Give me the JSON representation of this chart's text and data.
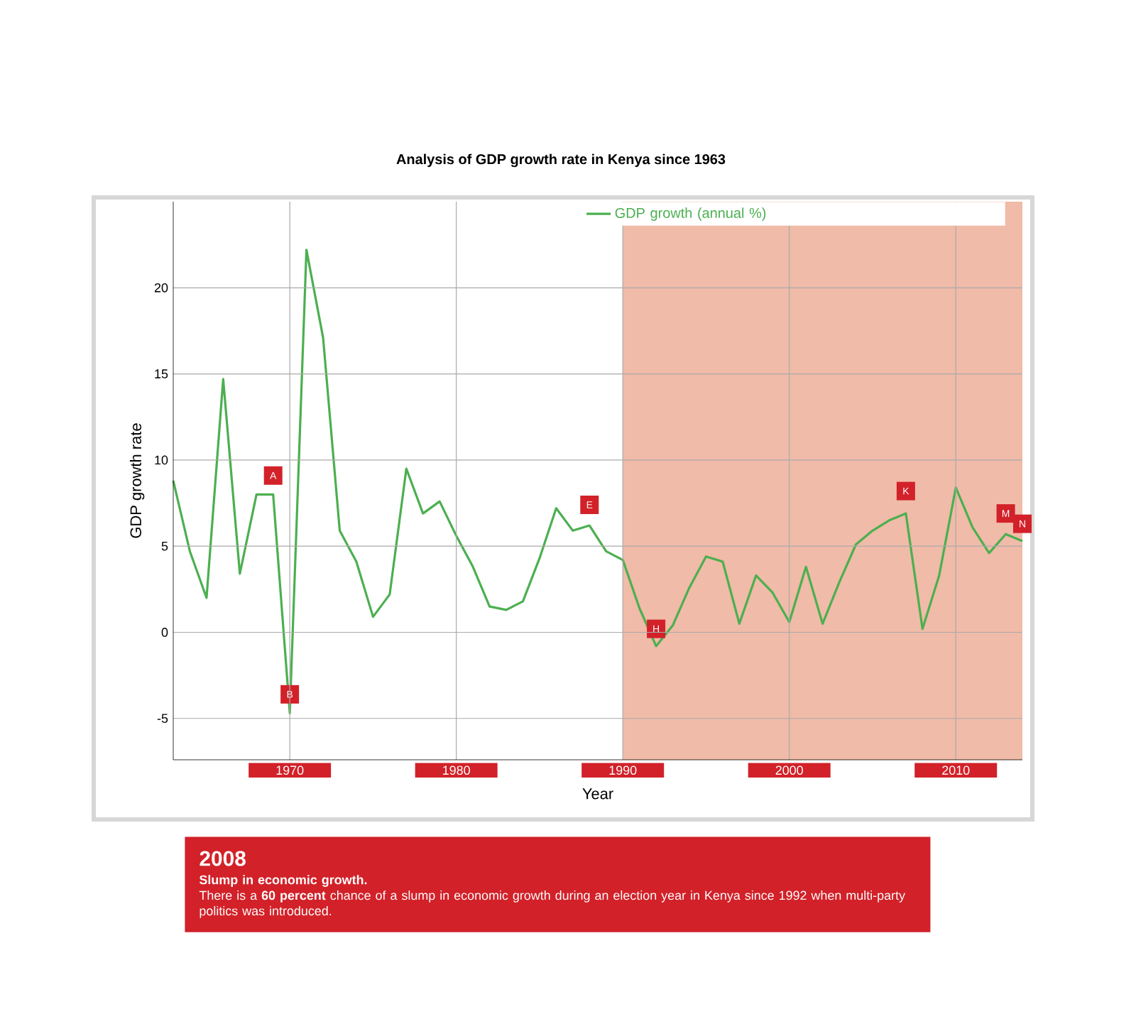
{
  "chart_data": {
    "type": "line",
    "title": "Analysis of GDP growth rate in Kenya since 1963",
    "xlabel": "Year",
    "ylabel": "GDP growth rate",
    "series": [
      {
        "name": "GDP growth (annual %)",
        "color": "#4caf50",
        "x": [
          1963,
          1964,
          1965,
          1966,
          1967,
          1968,
          1969,
          1970,
          1971,
          1972,
          1973,
          1974,
          1975,
          1976,
          1977,
          1978,
          1979,
          1980,
          1981,
          1982,
          1983,
          1984,
          1985,
          1986,
          1987,
          1988,
          1989,
          1990,
          1991,
          1992,
          1993,
          1994,
          1995,
          1996,
          1997,
          1998,
          1999,
          2000,
          2001,
          2002,
          2003,
          2004,
          2005,
          2006,
          2007,
          2008,
          2009,
          2010,
          2011,
          2012,
          2013,
          2014
        ],
        "values": [
          8.8,
          4.7,
          2.0,
          14.7,
          3.4,
          8.0,
          8.0,
          -4.7,
          22.2,
          17.1,
          5.9,
          4.1,
          0.9,
          2.2,
          9.5,
          6.9,
          7.6,
          5.6,
          3.8,
          1.5,
          1.3,
          1.8,
          4.3,
          7.2,
          5.9,
          6.2,
          4.7,
          4.2,
          1.4,
          -0.8,
          0.4,
          2.6,
          4.4,
          4.1,
          0.5,
          3.3,
          2.3,
          0.6,
          3.8,
          0.5,
          2.9,
          5.1,
          5.9,
          6.5,
          6.9,
          0.2,
          3.3,
          8.4,
          6.1,
          4.6,
          5.7,
          5.3
        ]
      }
    ],
    "xlim": [
      1963,
      2014
    ],
    "xticks": [
      1970,
      1980,
      1990,
      2000,
      2010
    ],
    "ylim": [
      -7.4,
      25
    ],
    "yticks": [
      -5,
      0,
      5,
      10,
      15,
      20
    ],
    "bands": [
      {
        "axis": "x",
        "from": 1990,
        "to": 2014,
        "color": "#f0bba8"
      }
    ],
    "annotations": [
      {
        "text": "A",
        "x": 1969,
        "y": 9.1
      },
      {
        "text": "B",
        "x": 1970,
        "y": -3.6
      },
      {
        "text": "E",
        "x": 1988,
        "y": 7.4
      },
      {
        "text": "H",
        "x": 1992,
        "y": 0.2
      },
      {
        "text": "K",
        "x": 2007,
        "y": 8.2
      },
      {
        "text": "M",
        "x": 2013,
        "y": 6.9
      },
      {
        "text": "N",
        "x": 2014,
        "y": 6.3
      },
      "2008",
      "Slump in economic growth.",
      "There is a **60 percent** chance of a slump in economic growth during an election year in Kenya since 1992 when multi-party politics was introduced."
    ],
    "grid": true,
    "legend": "top right",
    "marker": "none",
    "line_style": "solid"
  }
}
